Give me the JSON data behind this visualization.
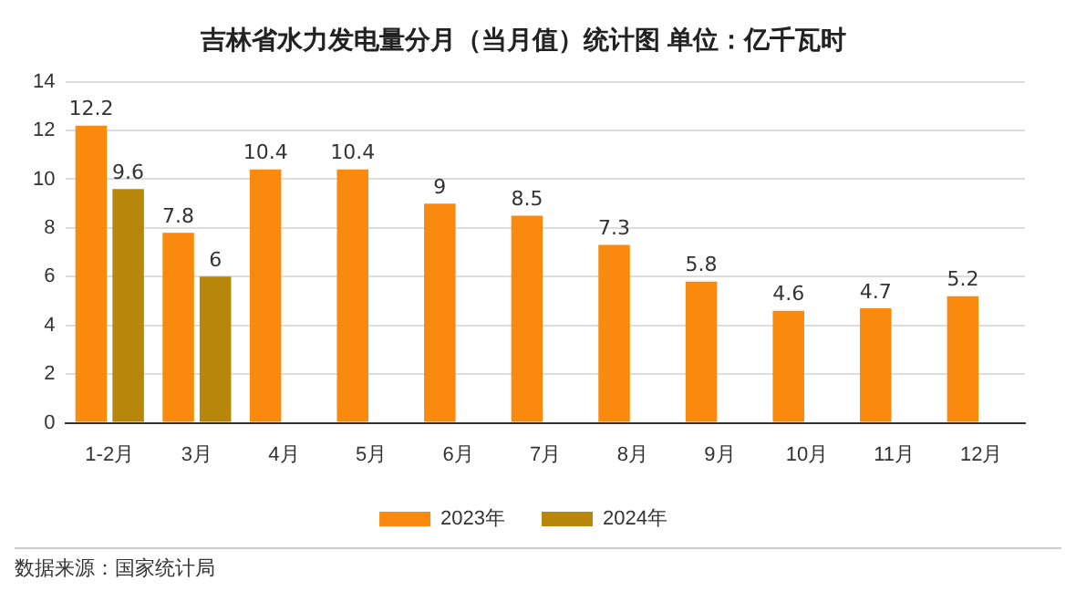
{
  "chart_data": {
    "type": "bar",
    "title": "吉林省水力发电量分月（当月值）统计图 单位：亿千瓦时",
    "categories": [
      "1-2月",
      "3月",
      "4月",
      "5月",
      "6月",
      "7月",
      "8月",
      "9月",
      "10月",
      "11月",
      "12月"
    ],
    "series": [
      {
        "name": "2023年",
        "color": "#f98a0e",
        "values": [
          12.2,
          7.8,
          10.4,
          10.4,
          9,
          8.5,
          7.3,
          5.8,
          4.6,
          4.7,
          5.2
        ]
      },
      {
        "name": "2024年",
        "color": "#b8860b",
        "values": [
          9.6,
          6,
          null,
          null,
          null,
          null,
          null,
          null,
          null,
          null,
          null
        ]
      }
    ],
    "ylim": [
      0,
      14
    ],
    "yticks": [
      0,
      2,
      4,
      6,
      8,
      10,
      12,
      14
    ],
    "grid": "y",
    "legend": "bottom",
    "data_labels": true,
    "annotations": [
      "数据来源：国家统计局"
    ]
  }
}
